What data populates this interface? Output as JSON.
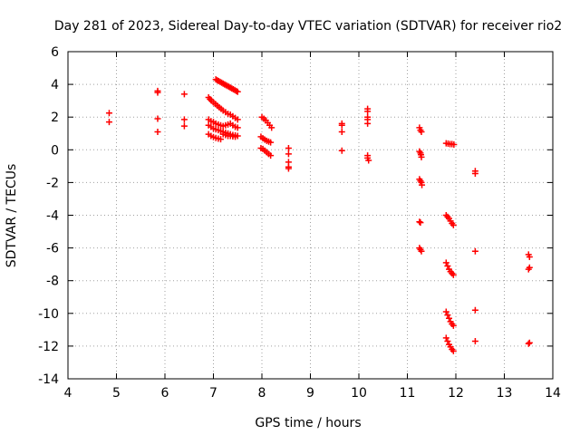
{
  "chart_data": {
    "type": "scatter",
    "title": "Day 281 of 2023, Sidereal Day-to-day VTEC variation (SDTVAR) for receiver rio2",
    "xlabel": "GPS time / hours",
    "ylabel": "SDTVAR / TECUs",
    "xlim": [
      4,
      14
    ],
    "ylim": [
      -14,
      6
    ],
    "xticks": [
      4,
      5,
      6,
      7,
      8,
      9,
      10,
      11,
      12,
      13,
      14
    ],
    "yticks": [
      -14,
      -12,
      -10,
      -8,
      -6,
      -4,
      -2,
      0,
      2,
      4,
      6
    ],
    "grid": true,
    "marker": "+",
    "marker_color": "#ff0000",
    "series": [
      {
        "name": "SDTVAR",
        "points": [
          [
            4.85,
            2.25
          ],
          [
            4.85,
            1.7
          ],
          [
            5.85,
            3.6
          ],
          [
            5.85,
            3.5
          ],
          [
            5.85,
            1.9
          ],
          [
            5.85,
            1.1
          ],
          [
            6.4,
            3.4
          ],
          [
            6.4,
            1.85
          ],
          [
            6.4,
            1.45
          ],
          [
            6.9,
            3.2
          ],
          [
            6.93,
            3.1
          ],
          [
            6.96,
            3.0
          ],
          [
            7.0,
            2.9
          ],
          [
            7.04,
            2.8
          ],
          [
            7.08,
            2.7
          ],
          [
            7.12,
            2.6
          ],
          [
            7.16,
            2.5
          ],
          [
            7.2,
            2.4
          ],
          [
            7.25,
            2.3
          ],
          [
            7.3,
            2.2
          ],
          [
            7.35,
            2.15
          ],
          [
            7.4,
            2.05
          ],
          [
            7.45,
            1.95
          ],
          [
            7.5,
            1.85
          ],
          [
            7.05,
            4.3
          ],
          [
            7.08,
            4.25
          ],
          [
            7.11,
            4.2
          ],
          [
            7.14,
            4.15
          ],
          [
            7.17,
            4.1
          ],
          [
            7.2,
            4.05
          ],
          [
            7.23,
            4.0
          ],
          [
            7.26,
            3.95
          ],
          [
            7.29,
            3.9
          ],
          [
            7.32,
            3.85
          ],
          [
            7.35,
            3.8
          ],
          [
            7.38,
            3.75
          ],
          [
            7.41,
            3.7
          ],
          [
            7.44,
            3.65
          ],
          [
            7.47,
            3.6
          ],
          [
            7.5,
            3.55
          ],
          [
            6.9,
            1.85
          ],
          [
            6.95,
            1.75
          ],
          [
            7.0,
            1.7
          ],
          [
            7.05,
            1.6
          ],
          [
            7.1,
            1.55
          ],
          [
            7.15,
            1.5
          ],
          [
            7.2,
            1.45
          ],
          [
            7.25,
            1.5
          ],
          [
            7.3,
            1.55
          ],
          [
            7.35,
            1.6
          ],
          [
            7.4,
            1.5
          ],
          [
            7.45,
            1.4
          ],
          [
            7.5,
            1.35
          ],
          [
            6.9,
            1.5
          ],
          [
            6.95,
            1.4
          ],
          [
            7.0,
            1.3
          ],
          [
            7.05,
            1.25
          ],
          [
            7.1,
            1.2
          ],
          [
            7.15,
            1.15
          ],
          [
            7.2,
            1.1
          ],
          [
            7.25,
            1.05
          ],
          [
            7.3,
            1.0
          ],
          [
            7.35,
            0.95
          ],
          [
            7.4,
            0.9
          ],
          [
            7.45,
            0.88
          ],
          [
            7.5,
            0.85
          ],
          [
            6.9,
            0.95
          ],
          [
            6.95,
            0.85
          ],
          [
            7.0,
            0.78
          ],
          [
            7.05,
            0.72
          ],
          [
            7.1,
            0.68
          ],
          [
            7.15,
            0.65
          ],
          [
            7.2,
            0.95
          ],
          [
            7.25,
            0.9
          ],
          [
            7.3,
            0.85
          ],
          [
            7.35,
            0.85
          ],
          [
            7.4,
            0.82
          ],
          [
            7.45,
            0.8
          ],
          [
            8.0,
            2.0
          ],
          [
            8.04,
            1.9
          ],
          [
            8.08,
            1.8
          ],
          [
            8.12,
            1.65
          ],
          [
            8.16,
            1.5
          ],
          [
            8.2,
            1.35
          ],
          [
            7.98,
            0.8
          ],
          [
            8.02,
            0.7
          ],
          [
            8.06,
            0.62
          ],
          [
            8.1,
            0.55
          ],
          [
            8.14,
            0.5
          ],
          [
            8.18,
            0.45
          ],
          [
            7.98,
            0.1
          ],
          [
            8.02,
            0.05
          ],
          [
            8.06,
            -0.05
          ],
          [
            8.1,
            -0.15
          ],
          [
            8.14,
            -0.25
          ],
          [
            8.18,
            -0.35
          ],
          [
            8.55,
            0.1
          ],
          [
            8.55,
            -0.25
          ],
          [
            8.55,
            -0.75
          ],
          [
            8.55,
            -1.05
          ],
          [
            8.55,
            -1.15
          ],
          [
            9.65,
            1.6
          ],
          [
            9.65,
            1.5
          ],
          [
            9.65,
            1.1
          ],
          [
            9.65,
            -0.05
          ],
          [
            10.18,
            2.5
          ],
          [
            10.18,
            2.35
          ],
          [
            10.18,
            2.0
          ],
          [
            10.18,
            1.85
          ],
          [
            10.18,
            1.6
          ],
          [
            10.18,
            -0.35
          ],
          [
            10.18,
            -0.5
          ],
          [
            10.2,
            -0.65
          ],
          [
            11.25,
            1.35
          ],
          [
            11.27,
            1.2
          ],
          [
            11.29,
            1.1
          ],
          [
            11.25,
            -0.1
          ],
          [
            11.27,
            -0.2
          ],
          [
            11.28,
            -0.3
          ],
          [
            11.29,
            -0.45
          ],
          [
            11.25,
            -1.8
          ],
          [
            11.27,
            -1.9
          ],
          [
            11.29,
            -2.0
          ],
          [
            11.3,
            -2.15
          ],
          [
            11.25,
            -4.4
          ],
          [
            11.27,
            -4.45
          ],
          [
            11.25,
            -6.0
          ],
          [
            11.27,
            -6.1
          ],
          [
            11.29,
            -6.2
          ],
          [
            11.8,
            0.4
          ],
          [
            11.84,
            0.38
          ],
          [
            11.88,
            0.35
          ],
          [
            11.92,
            0.35
          ],
          [
            11.96,
            0.32
          ],
          [
            11.8,
            -4.0
          ],
          [
            11.83,
            -4.1
          ],
          [
            11.86,
            -4.2
          ],
          [
            11.89,
            -4.35
          ],
          [
            11.92,
            -4.5
          ],
          [
            11.95,
            -4.6
          ],
          [
            11.8,
            -6.9
          ],
          [
            11.83,
            -7.1
          ],
          [
            11.86,
            -7.3
          ],
          [
            11.89,
            -7.45
          ],
          [
            11.92,
            -7.55
          ],
          [
            11.95,
            -7.65
          ],
          [
            11.8,
            -9.9
          ],
          [
            11.83,
            -10.1
          ],
          [
            11.86,
            -10.3
          ],
          [
            11.89,
            -10.5
          ],
          [
            11.92,
            -10.65
          ],
          [
            11.95,
            -10.75
          ],
          [
            11.8,
            -11.5
          ],
          [
            11.83,
            -11.7
          ],
          [
            11.86,
            -11.9
          ],
          [
            11.89,
            -12.05
          ],
          [
            11.92,
            -12.2
          ],
          [
            11.95,
            -12.3
          ],
          [
            12.4,
            -1.3
          ],
          [
            12.4,
            -1.45
          ],
          [
            12.4,
            -6.2
          ],
          [
            12.4,
            -9.8
          ],
          [
            12.4,
            -11.7
          ],
          [
            13.5,
            -6.4
          ],
          [
            13.52,
            -6.55
          ],
          [
            13.5,
            -7.3
          ],
          [
            13.52,
            -7.2
          ],
          [
            13.5,
            -11.85
          ],
          [
            13.52,
            -11.8
          ]
        ]
      }
    ]
  }
}
